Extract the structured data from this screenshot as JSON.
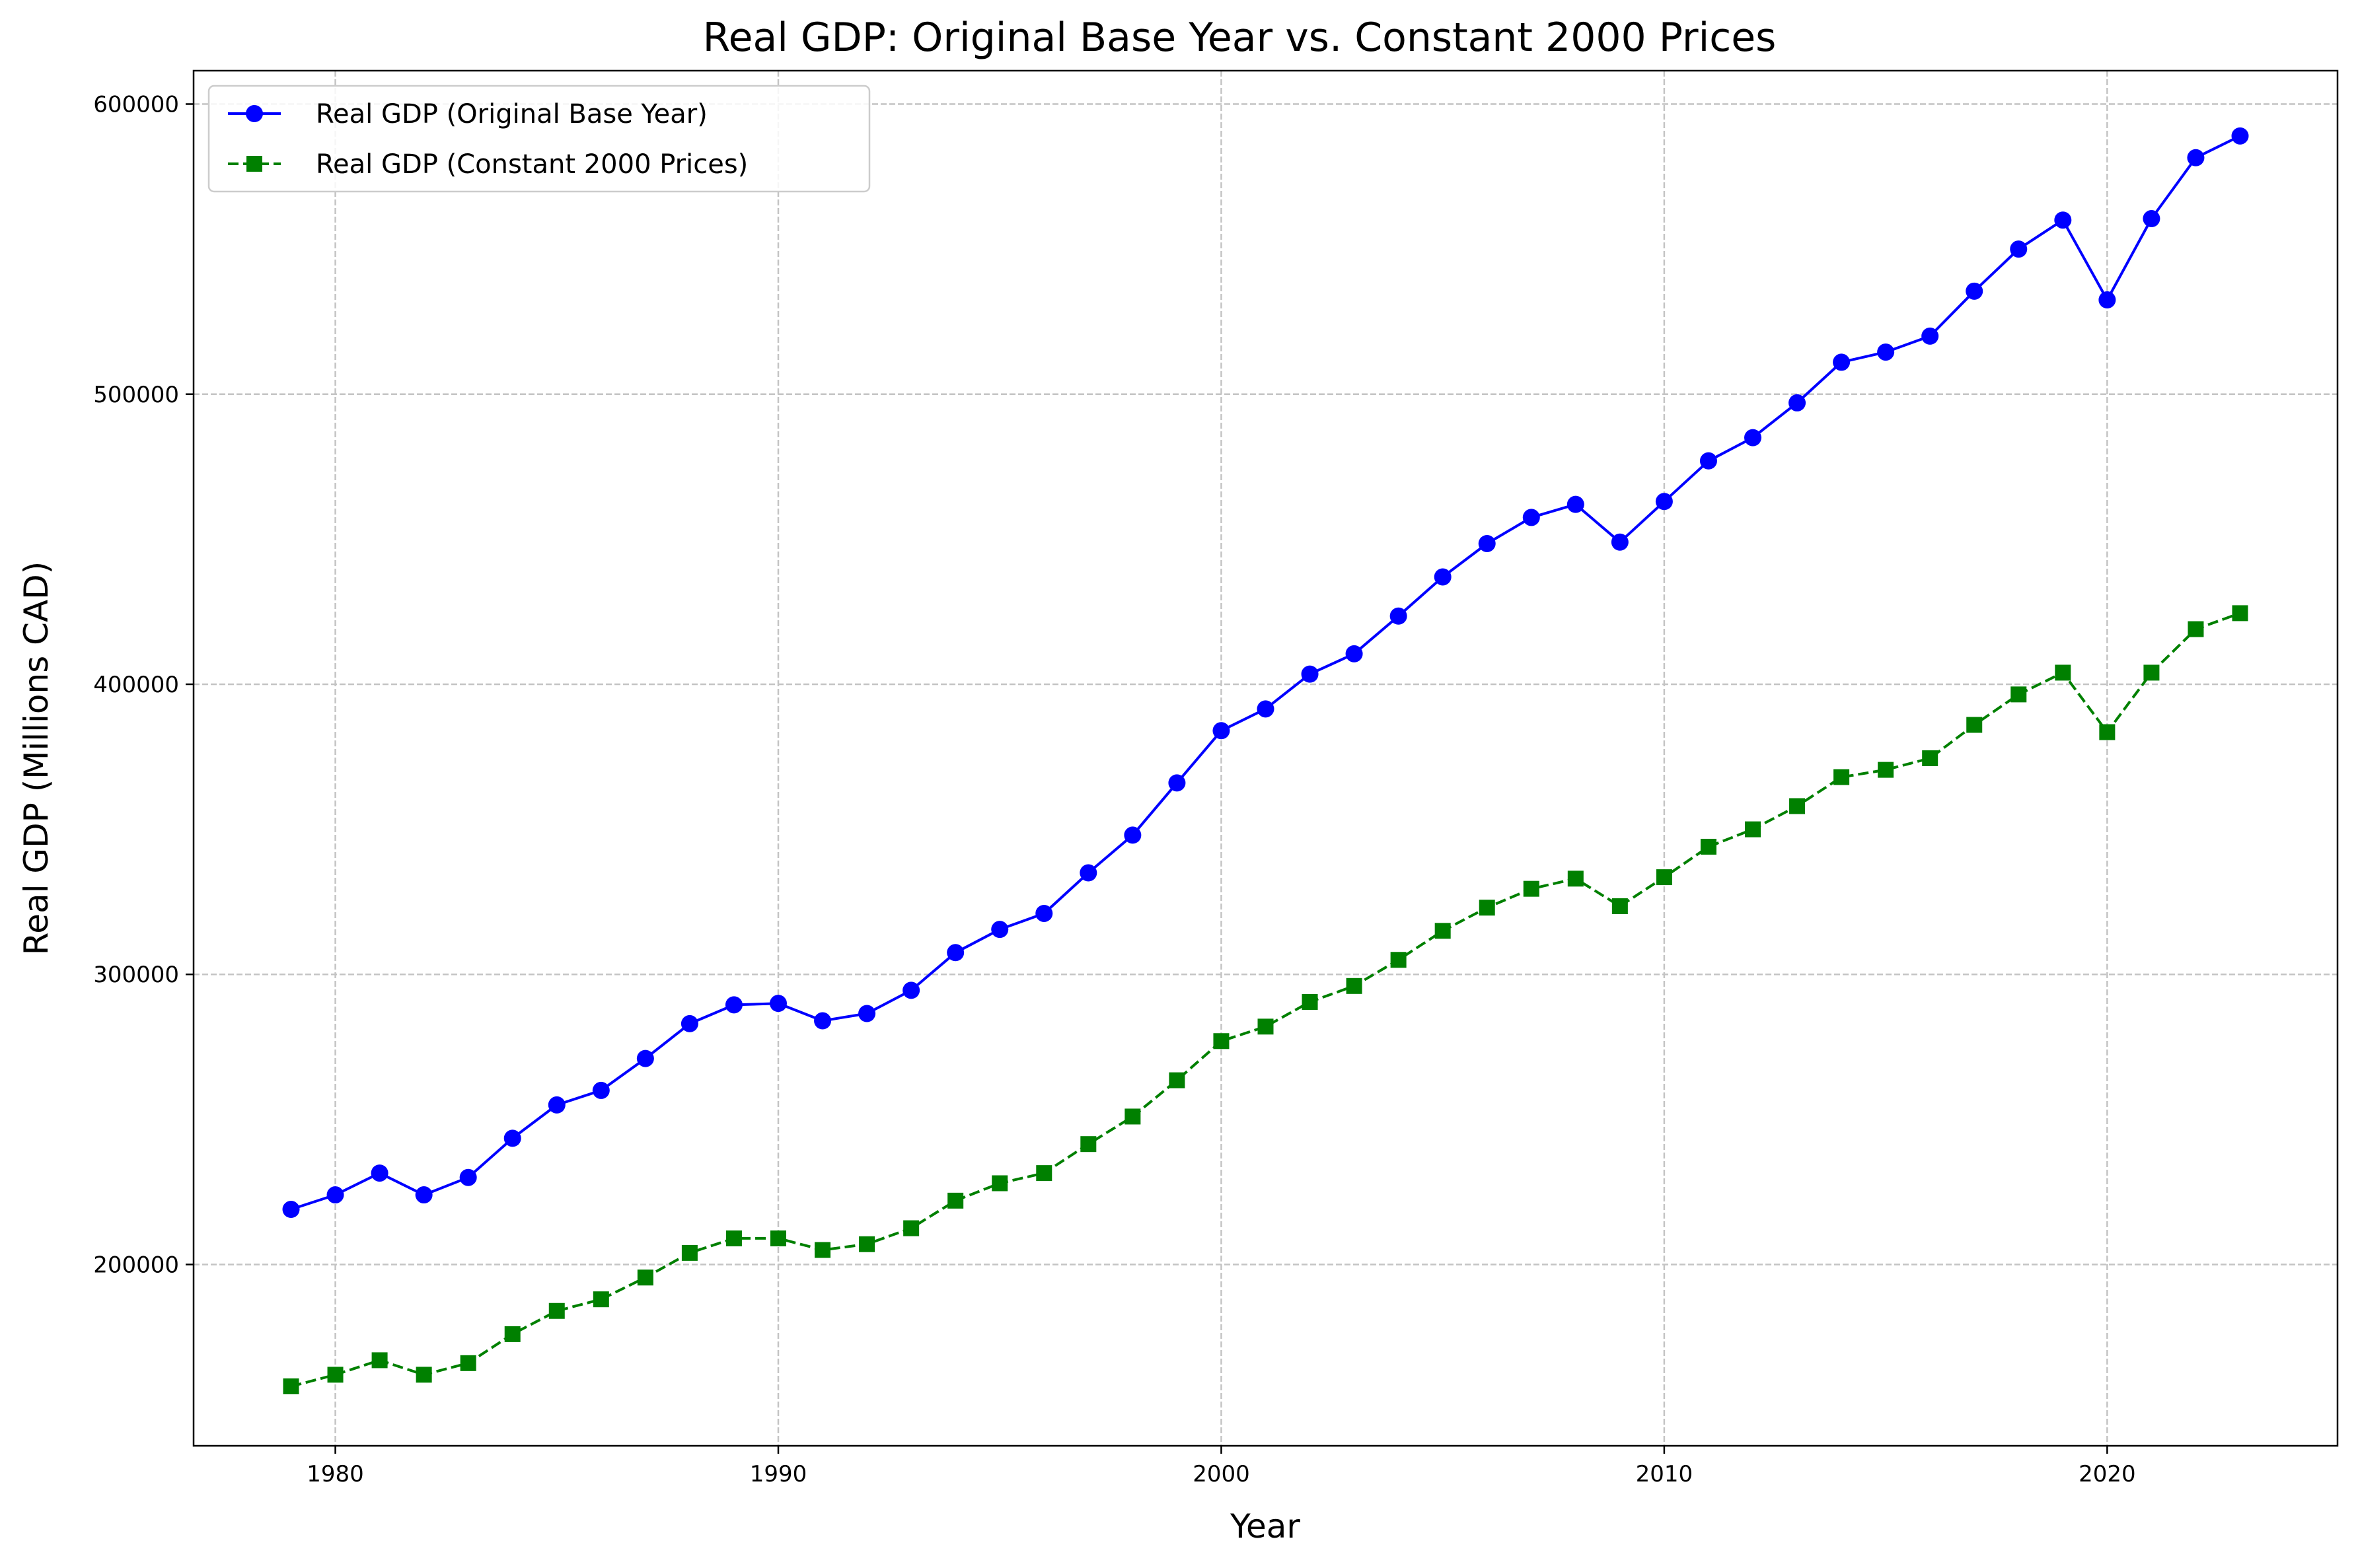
{
  "chart_data": {
    "type": "line",
    "title": "Real GDP: Original Base Year vs. Constant 2000 Prices",
    "xlabel": "Year",
    "ylabel": "Real GDP (Millions CAD)",
    "xlim": [
      1976.8,
      2025.2
    ],
    "ylim": [
      137500,
      611500
    ],
    "x_ticks": [
      1980,
      1990,
      2000,
      2010,
      2020
    ],
    "y_ticks": [
      200000,
      300000,
      400000,
      500000,
      600000
    ],
    "grid": true,
    "legend_position": "upper left",
    "x": [
      1979,
      1980,
      1981,
      1982,
      1983,
      1984,
      1985,
      1986,
      1987,
      1988,
      1989,
      1990,
      1991,
      1992,
      1993,
      1994,
      1995,
      1996,
      1997,
      1998,
      1999,
      2000,
      2001,
      2002,
      2003,
      2004,
      2005,
      2006,
      2007,
      2008,
      2009,
      2010,
      2011,
      2012,
      2013,
      2014,
      2015,
      2016,
      2017,
      2018,
      2019,
      2020,
      2021,
      2022,
      2023
    ],
    "series": [
      {
        "name": "Real GDP (Original Base Year)",
        "color": "#0000ff",
        "line_style": "solid",
        "marker": "circle",
        "values": [
          219000,
          224000,
          231500,
          224000,
          230000,
          243500,
          255000,
          260000,
          271000,
          283000,
          289500,
          290000,
          284000,
          286500,
          294500,
          307500,
          315500,
          321000,
          335000,
          348000,
          366000,
          384000,
          391500,
          403500,
          410500,
          423500,
          437000,
          448500,
          457500,
          462000,
          449000,
          463000,
          477000,
          485000,
          497000,
          511000,
          514500,
          520000,
          535500,
          550000,
          560000,
          532500,
          560500,
          581500,
          589000
        ]
      },
      {
        "name": "Real GDP (Constant 2000 Prices)",
        "color": "#008000",
        "line_style": "dashed",
        "marker": "square",
        "values": [
          158000,
          162000,
          167000,
          162000,
          166000,
          176000,
          184000,
          188000,
          195500,
          204000,
          209000,
          209000,
          205000,
          207000,
          212500,
          222000,
          228000,
          231500,
          241500,
          251000,
          263500,
          277000,
          282000,
          290500,
          296000,
          305000,
          315000,
          323000,
          329500,
          333000,
          323500,
          333500,
          344000,
          350000,
          358000,
          368000,
          370500,
          374500,
          386000,
          396500,
          404000,
          383500,
          404000,
          419000,
          424500
        ]
      }
    ]
  }
}
